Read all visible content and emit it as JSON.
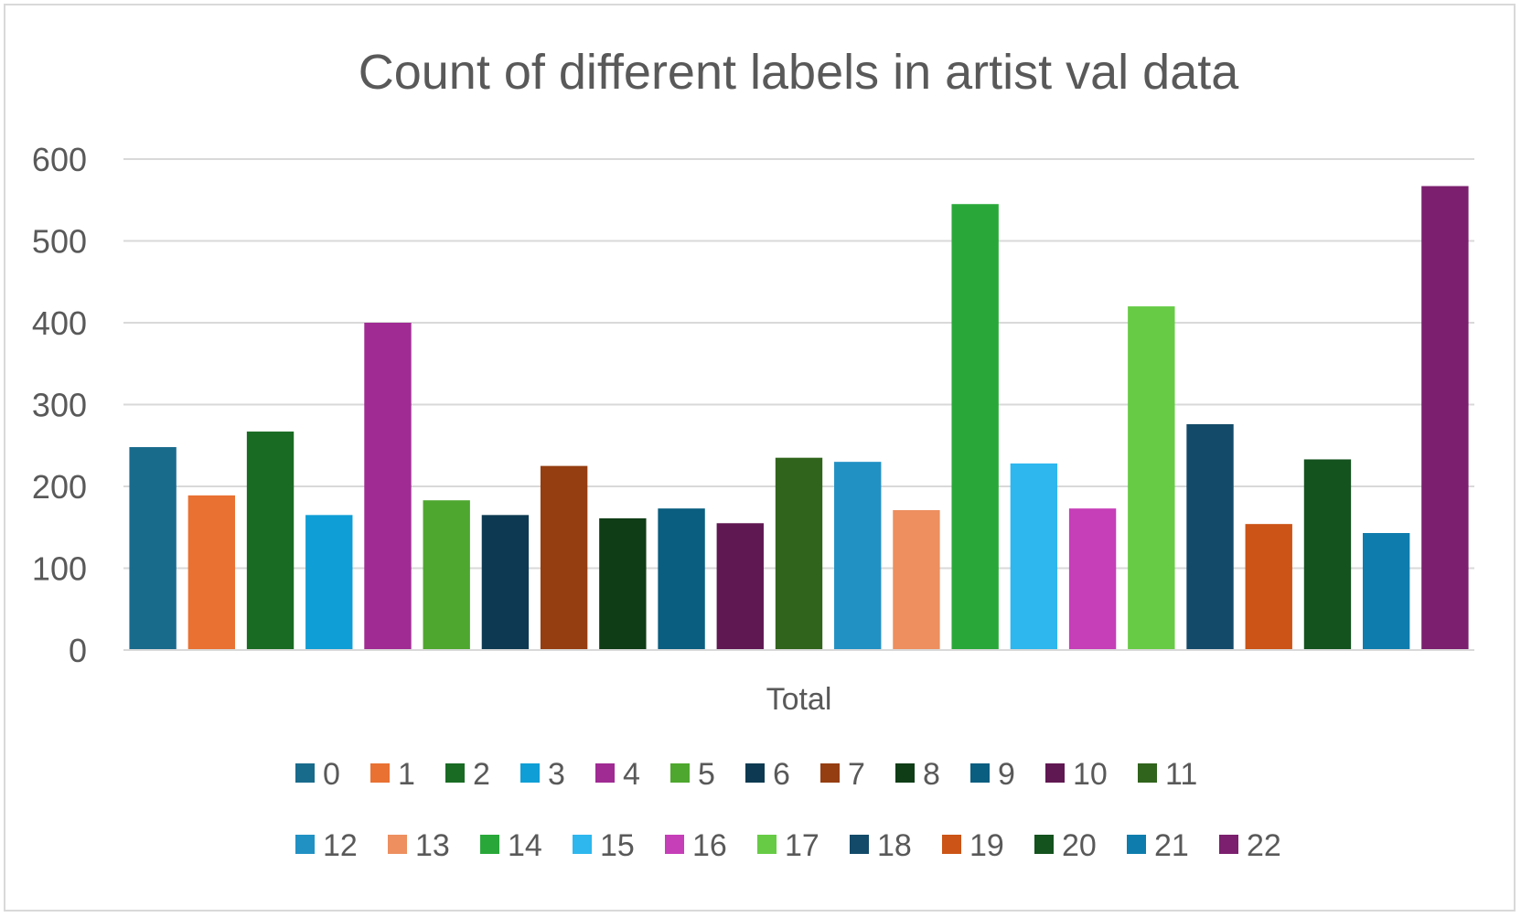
{
  "chart_data": {
    "type": "bar",
    "title": "Count of different labels in artist val data",
    "categories": [
      "Total"
    ],
    "xlabel": "",
    "ylabel": "",
    "ylim": [
      0,
      600
    ],
    "yticks": [
      0,
      100,
      200,
      300,
      400,
      500,
      600
    ],
    "ytick_labels": [
      "0",
      "100",
      "200",
      "300",
      "400",
      "500",
      "600"
    ],
    "grid": true,
    "legend_position": "bottom",
    "series": [
      {
        "name": "0",
        "values": [
          248
        ],
        "color": "#196B8C"
      },
      {
        "name": "1",
        "values": [
          189
        ],
        "color": "#E97132"
      },
      {
        "name": "2",
        "values": [
          267
        ],
        "color": "#196B24"
      },
      {
        "name": "3",
        "values": [
          165
        ],
        "color": "#0F9ED5"
      },
      {
        "name": "4",
        "values": [
          400
        ],
        "color": "#A02B93"
      },
      {
        "name": "5",
        "values": [
          183
        ],
        "color": "#4EA72E"
      },
      {
        "name": "6",
        "values": [
          165
        ],
        "color": "#0D3A52"
      },
      {
        "name": "7",
        "values": [
          225
        ],
        "color": "#953E12"
      },
      {
        "name": "8",
        "values": [
          161
        ],
        "color": "#0F3D16"
      },
      {
        "name": "9",
        "values": [
          173
        ],
        "color": "#0A5E80"
      },
      {
        "name": "10",
        "values": [
          155
        ],
        "color": "#601852"
      },
      {
        "name": "11",
        "values": [
          235
        ],
        "color": "#30641C"
      },
      {
        "name": "12",
        "values": [
          230
        ],
        "color": "#2191C4"
      },
      {
        "name": "13",
        "values": [
          171
        ],
        "color": "#ED8F5F"
      },
      {
        "name": "14",
        "values": [
          545
        ],
        "color": "#29A839"
      },
      {
        "name": "15",
        "values": [
          228
        ],
        "color": "#2DB7EE"
      },
      {
        "name": "16",
        "values": [
          173
        ],
        "color": "#C63EB8"
      },
      {
        "name": "17",
        "values": [
          420
        ],
        "color": "#67CB45"
      },
      {
        "name": "18",
        "values": [
          276
        ],
        "color": "#134A69"
      },
      {
        "name": "19",
        "values": [
          154
        ],
        "color": "#CB5416"
      },
      {
        "name": "20",
        "values": [
          233
        ],
        "color": "#14521E"
      },
      {
        "name": "21",
        "values": [
          143
        ],
        "color": "#0E7DAD"
      },
      {
        "name": "22",
        "values": [
          567
        ],
        "color": "#7B1F6E"
      }
    ]
  }
}
